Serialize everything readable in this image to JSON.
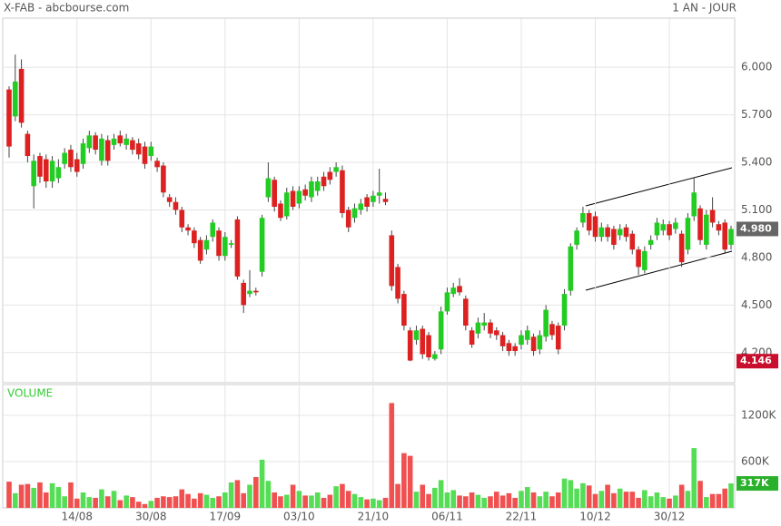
{
  "header": {
    "title": "X-FAB - abcbourse.com",
    "period": "1 AN - JOUR"
  },
  "chart_data": [
    {
      "type": "candlestick",
      "up_color": "#22cc22",
      "down_color": "#dd2020",
      "ylim": [
        4.01,
        6.31
      ],
      "yticks": [
        {
          "value": 4.2,
          "label": "4.200"
        },
        {
          "value": 4.5,
          "label": "4.500"
        },
        {
          "value": 4.8,
          "label": "4.800"
        },
        {
          "value": 5.1,
          "label": "5.100"
        },
        {
          "value": 5.4,
          "label": "5.400"
        },
        {
          "value": 5.7,
          "label": "5.700"
        },
        {
          "value": 6,
          "label": "6.000"
        }
      ],
      "grid": true,
      "last_label": {
        "value": 4.98,
        "label": "4.980"
      },
      "low_label": 4.146,
      "open": [
        5.86,
        5.69,
        5.99,
        5.58,
        5.25,
        5.44,
        5.42,
        5.28,
        5.3,
        5.39,
        5.48,
        5.42,
        5.39,
        5.49,
        5.57,
        5.41,
        5.54,
        5.51,
        5.57,
        5.51,
        5.54,
        5.52,
        5.5,
        5.44,
        5.41,
        5.38,
        5.18,
        5.15,
        5.1,
        4.99,
        4.97,
        4.91,
        4.85,
        4.93,
        4.97,
        4.81,
        4.88,
        5.04,
        4.64,
        4.57,
        4.59,
        4.71,
        5.18,
        5.29,
        5.14,
        5.06,
        5.22,
        5.14,
        5.23,
        5.18,
        5.22,
        5.31,
        5.34,
        5.34,
        5.35,
        5.1,
        5.05,
        5.1,
        5.18,
        5.15,
        5.19,
        5.17,
        4.94,
        4.74,
        4.57,
        4.34,
        4.28,
        4.35,
        4.31,
        4.16,
        4.22,
        4.46,
        4.57,
        4.62,
        4.54,
        4.34,
        4.32,
        4.37,
        4.39,
        4.34,
        4.31,
        4.26,
        4.24,
        4.25,
        4.28,
        4.3,
        4.22,
        4.3,
        4.38,
        4.37,
        4.37,
        4.59,
        4.88,
        5.02,
        5.08,
        5.06,
        4.93,
        4.99,
        4.98,
        4.94,
        4.99,
        4.95,
        4.85,
        4.72,
        4.88,
        4.94,
        4.97,
        5.01,
        4.98,
        4.95,
        4.85,
        5.06,
        5.11,
        4.88,
        5.1,
        5.01,
        5.02,
        4.88
      ],
      "high": [
        5.88,
        6.08,
        6.05,
        5.6,
        5.45,
        5.46,
        5.45,
        5.44,
        5.42,
        5.49,
        5.51,
        5.46,
        5.55,
        5.6,
        5.59,
        5.58,
        5.57,
        5.58,
        5.6,
        5.58,
        5.56,
        5.55,
        5.53,
        5.53,
        5.43,
        5.4,
        5.2,
        5.18,
        5.12,
        5.01,
        4.99,
        4.93,
        4.94,
        5.04,
        4.99,
        4.96,
        4.91,
        5.06,
        4.66,
        4.72,
        4.61,
        5.07,
        5.4,
        5.31,
        5.16,
        5.24,
        5.25,
        5.25,
        5.26,
        5.31,
        5.31,
        5.34,
        5.37,
        5.4,
        5.38,
        5.12,
        5.14,
        5.17,
        5.2,
        5.22,
        5.36,
        5.21,
        4.97,
        4.76,
        4.59,
        4.36,
        4.37,
        4.37,
        4.33,
        4.21,
        4.49,
        4.61,
        4.64,
        4.67,
        4.56,
        4.36,
        4.42,
        4.45,
        4.41,
        4.36,
        4.33,
        4.28,
        4.26,
        4.34,
        4.37,
        4.32,
        4.34,
        4.5,
        4.4,
        4.39,
        4.6,
        4.89,
        4.99,
        5.12,
        5.1,
        5.09,
        5.02,
        5.01,
        5.0,
        5.01,
        5.01,
        4.97,
        4.87,
        4.87,
        4.94,
        5.05,
        5.04,
        5.03,
        5.05,
        4.97,
        5.08,
        5.3,
        5.13,
        5.1,
        5.18,
        5.03,
        5.04,
        5.0
      ],
      "low": [
        5.43,
        5.66,
        5.62,
        5.4,
        5.11,
        5.27,
        5.24,
        5.24,
        5.27,
        5.36,
        5.34,
        5.31,
        5.36,
        5.46,
        5.45,
        5.38,
        5.38,
        5.48,
        5.5,
        5.48,
        5.45,
        5.42,
        5.36,
        5.41,
        5.34,
        5.18,
        5.12,
        5.07,
        4.96,
        4.94,
        4.86,
        4.76,
        4.82,
        4.9,
        4.78,
        4.78,
        4.86,
        4.66,
        4.45,
        4.55,
        4.56,
        4.68,
        5.15,
        5.09,
        5.03,
        5.04,
        5.1,
        5.11,
        5.16,
        5.15,
        5.19,
        5.22,
        5.26,
        5.31,
        5.05,
        4.96,
        5.02,
        5.07,
        5.09,
        5.12,
        5.14,
        5.13,
        4.59,
        4.51,
        4.34,
        4.146,
        4.25,
        4.16,
        4.15,
        4.15,
        4.19,
        4.44,
        4.55,
        4.56,
        4.34,
        4.23,
        4.29,
        4.34,
        4.29,
        4.28,
        4.21,
        4.18,
        4.18,
        4.22,
        4.25,
        4.18,
        4.19,
        4.27,
        4.28,
        4.19,
        4.34,
        4.56,
        4.85,
        4.99,
        4.94,
        4.9,
        4.9,
        4.9,
        4.85,
        4.91,
        4.9,
        4.82,
        4.69,
        4.7,
        4.85,
        4.91,
        4.94,
        4.91,
        4.95,
        4.74,
        4.82,
        5.03,
        4.88,
        4.85,
        4.99,
        4.94,
        4.83,
        4.85
      ],
      "close": [
        5.5,
        5.91,
        5.65,
        5.44,
        5.41,
        5.31,
        5.28,
        5.41,
        5.37,
        5.46,
        5.37,
        5.34,
        5.52,
        5.57,
        5.48,
        5.55,
        5.41,
        5.55,
        5.52,
        5.55,
        5.48,
        5.45,
        5.39,
        5.5,
        5.37,
        5.21,
        5.15,
        5.1,
        4.99,
        4.97,
        4.89,
        4.78,
        4.91,
        5.02,
        4.81,
        4.93,
        4.89,
        4.68,
        4.5,
        4.59,
        4.58,
        5.05,
        5.3,
        5.12,
        5.05,
        5.21,
        5.12,
        5.22,
        5.19,
        5.28,
        5.28,
        5.25,
        5.29,
        5.37,
        5.08,
        4.99,
        5.11,
        5.14,
        5.12,
        5.19,
        5.21,
        5.15,
        4.62,
        4.54,
        4.37,
        4.15,
        4.34,
        4.19,
        4.17,
        4.19,
        4.46,
        4.58,
        4.61,
        4.58,
        4.37,
        4.25,
        4.39,
        4.39,
        4.32,
        4.31,
        4.24,
        4.21,
        4.21,
        4.31,
        4.34,
        4.21,
        4.31,
        4.47,
        4.31,
        4.22,
        4.57,
        4.87,
        4.97,
        5.08,
        4.97,
        4.93,
        4.99,
        4.93,
        4.88,
        4.98,
        4.93,
        4.85,
        4.74,
        4.84,
        4.91,
        5.02,
        5.01,
        4.94,
        5.02,
        4.77,
        5.05,
        5.21,
        4.91,
        5.07,
        5.02,
        4.97,
        4.85,
        4.98
      ]
    },
    {
      "type": "bar",
      "title": "VOLUME",
      "up_color": "#55dd55",
      "down_color": "#f05050",
      "ylim": [
        0,
        1600
      ],
      "yticks": [
        {
          "value": 600,
          "label": "600K"
        },
        {
          "value": 1200,
          "label": "1200K"
        }
      ],
      "last_label": {
        "value": 317,
        "label": "317K"
      },
      "categories": [
        null,
        null,
        null,
        null,
        null,
        null,
        null,
        null,
        null,
        null,
        null,
        "14/08",
        null,
        null,
        null,
        null,
        null,
        null,
        null,
        null,
        null,
        null,
        null,
        "30/08",
        null,
        null,
        null,
        null,
        null,
        null,
        null,
        null,
        null,
        null,
        null,
        "17/09",
        null,
        null,
        null,
        null,
        null,
        null,
        null,
        null,
        null,
        null,
        null,
        "03/10",
        null,
        null,
        null,
        null,
        null,
        null,
        null,
        null,
        null,
        null,
        null,
        "21/10",
        null,
        null,
        null,
        null,
        null,
        null,
        null,
        null,
        null,
        null,
        null,
        "06/11",
        null,
        null,
        null,
        null,
        null,
        null,
        null,
        null,
        null,
        null,
        null,
        "22/11",
        null,
        null,
        null,
        null,
        null,
        null,
        null,
        null,
        null,
        null,
        null,
        "10/12",
        null,
        null,
        null,
        null,
        null,
        null,
        null,
        null,
        null,
        null,
        null,
        "30/12",
        null,
        null,
        null,
        null,
        null,
        null,
        null,
        null,
        null,
        null
      ],
      "values": [
        340,
        190,
        300,
        310,
        260,
        330,
        200,
        320,
        270,
        150,
        330,
        120,
        200,
        140,
        130,
        240,
        150,
        220,
        100,
        160,
        140,
        80,
        50,
        90,
        130,
        150,
        140,
        150,
        240,
        180,
        120,
        190,
        170,
        130,
        150,
        200,
        330,
        360,
        190,
        300,
        400,
        625,
        350,
        200,
        150,
        170,
        300,
        220,
        160,
        160,
        200,
        130,
        170,
        280,
        310,
        220,
        180,
        140,
        110,
        120,
        100,
        130,
        1360,
        310,
        710,
        675,
        210,
        300,
        180,
        260,
        360,
        200,
        230,
        160,
        150,
        200,
        170,
        130,
        150,
        210,
        160,
        190,
        130,
        220,
        270,
        200,
        150,
        210,
        150,
        200,
        380,
        360,
        250,
        320,
        290,
        180,
        220,
        300,
        190,
        250,
        210,
        210,
        130,
        230,
        150,
        200,
        140,
        120,
        160,
        300,
        220,
        775,
        350,
        140,
        180,
        180,
        250,
        317
      ]
    }
  ]
}
